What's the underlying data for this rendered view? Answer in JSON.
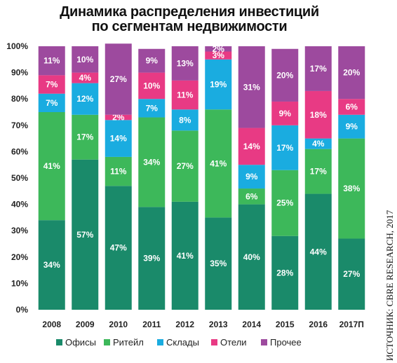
{
  "chart_data": {
    "type": "bar",
    "stacked": true,
    "title_lines": [
      "Динамика распределения инвестиций",
      "по сегментам недвижимости"
    ],
    "source_note": "ИСТОЧНИК: CBRE RESEARCH, 2017",
    "categories": [
      "2008",
      "2009",
      "2010",
      "2011",
      "2012",
      "2013",
      "2014",
      "2015",
      "2016",
      "2017П"
    ],
    "ylim": [
      0,
      100
    ],
    "yticks": [
      "0%",
      "10%",
      "20%",
      "30%",
      "40%",
      "50%",
      "60%",
      "70%",
      "80%",
      "90%",
      "100%"
    ],
    "grid": false,
    "legend_position": "bottom",
    "series": [
      {
        "name": "Офисы",
        "color": "#1a8a6a",
        "values": [
          34,
          57,
          47,
          39,
          41,
          35,
          40,
          28,
          44,
          27
        ],
        "labels": [
          "34%",
          "57%",
          "47%",
          "39%",
          "41%",
          "35%",
          "40%",
          "28%",
          "44%",
          "27%"
        ]
      },
      {
        "name": "Ритейл",
        "color": "#3db85a",
        "values": [
          41,
          17,
          11,
          34,
          27,
          41,
          6,
          25,
          17,
          38
        ],
        "labels": [
          "41%",
          "17%",
          "11%",
          "34%",
          "27%",
          "41%",
          "6%",
          "25%",
          "17%",
          "38%"
        ]
      },
      {
        "name": "Склады",
        "color": "#1aace0",
        "values": [
          7,
          12,
          14,
          7,
          8,
          19,
          9,
          17,
          4,
          9
        ],
        "labels": [
          "7%",
          "12%",
          "14%",
          "7%",
          "8%",
          "19%",
          "9%",
          "17%",
          "4%",
          "9%"
        ]
      },
      {
        "name": "Отели",
        "color": "#e83a84",
        "values": [
          7,
          4,
          2,
          10,
          11,
          3,
          14,
          9,
          18,
          6
        ],
        "labels": [
          "7%",
          "4%",
          "2%",
          "10%",
          "11%",
          "3%",
          "14%",
          "9%",
          "18%",
          "6%"
        ]
      },
      {
        "name": "Прочее",
        "color": "#9d4a9e",
        "values": [
          11,
          10,
          27,
          9,
          13,
          2,
          31,
          20,
          17,
          20
        ],
        "labels": [
          "11%",
          "10%",
          "27%",
          "9%",
          "13%",
          "2%",
          "31%",
          "20%",
          "17%",
          "20%"
        ]
      }
    ]
  }
}
